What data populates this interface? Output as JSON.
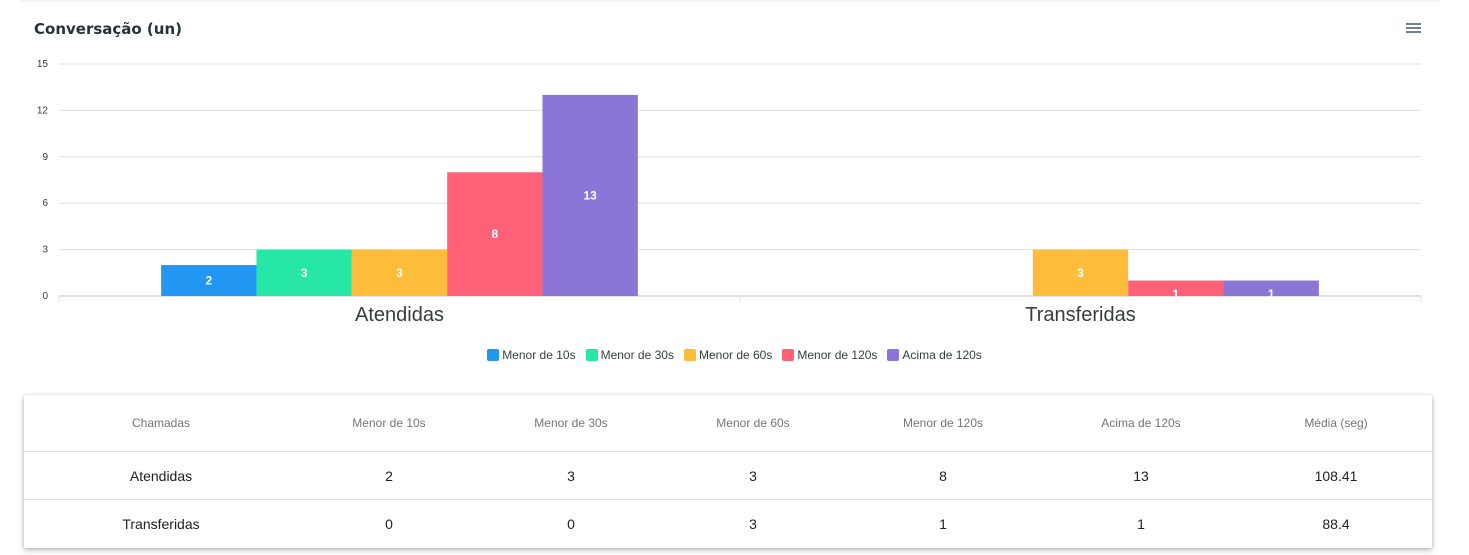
{
  "header": {
    "title": "Conversação (un)",
    "menu_icon": "hamburger-menu-icon"
  },
  "chart_data": {
    "type": "bar",
    "categories": [
      "Atendidas",
      "Transferidas"
    ],
    "series": [
      {
        "name": "Menor de 10s",
        "color": "#2196f3",
        "values": [
          2,
          0
        ]
      },
      {
        "name": "Menor de 30s",
        "color": "#26e7a6",
        "values": [
          3,
          0
        ]
      },
      {
        "name": "Menor de 60s",
        "color": "#febc3b",
        "values": [
          3,
          3
        ]
      },
      {
        "name": "Menor de 120s",
        "color": "#ff6178",
        "values": [
          8,
          1
        ]
      },
      {
        "name": "Acima de 120s",
        "color": "#8b75d7",
        "values": [
          13,
          1
        ]
      }
    ],
    "ylim": [
      0,
      15
    ],
    "yticks": [
      0,
      3,
      6,
      9,
      12,
      15
    ],
    "grid": true,
    "legend_position": "bottom-center",
    "data_labels": true
  },
  "table": {
    "headers": [
      "Chamadas",
      "Menor de 10s",
      "Menor de 30s",
      "Menor de 60s",
      "Menor de 120s",
      "Acima de 120s",
      "Média (seg)"
    ],
    "rows": [
      [
        "Atendidas",
        "2",
        "3",
        "3",
        "8",
        "13",
        "108.41"
      ],
      [
        "Transferidas",
        "0",
        "0",
        "3",
        "1",
        "1",
        "88.4"
      ]
    ]
  }
}
